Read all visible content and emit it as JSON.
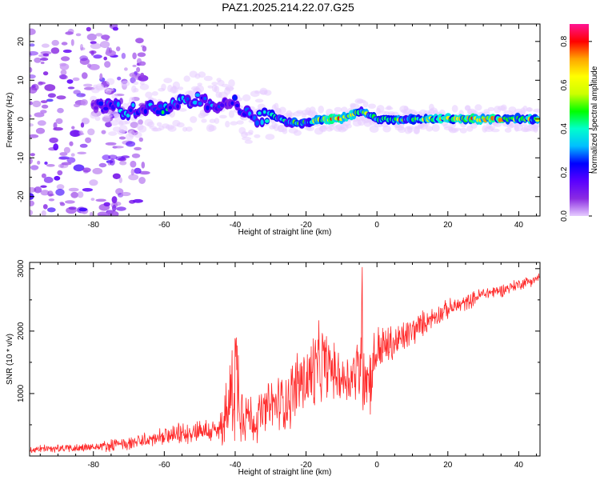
{
  "figure": {
    "title": "PAZ1.2025.214.22.07.G25"
  },
  "chart_data": [
    {
      "type": "heatmap",
      "xlabel": "Height of straight line (km)",
      "ylabel": "Frequency (Hz)",
      "xlim": [
        -98,
        46
      ],
      "ylim": [
        -25,
        24.5
      ],
      "xticks": [
        -80,
        -60,
        -40,
        -20,
        0,
        20,
        40
      ],
      "yticks": [
        -20,
        -10,
        0,
        10,
        20
      ],
      "grid": false,
      "colorbar": {
        "label": "Normalized spectral amplitude",
        "range": [
          0,
          0.88
        ],
        "ticks": [
          0.0,
          0.2,
          0.4,
          0.6,
          0.8
        ],
        "colormap": [
          "#e6ccff",
          "#8a2be2",
          "#5a00ff",
          "#0000ff",
          "#00bfff",
          "#00ffcc",
          "#00ff00",
          "#ccff00",
          "#ffff00",
          "#ffa500",
          "#ff0000",
          "#ff1493"
        ]
      },
      "ridge": {
        "x": [
          -80,
          -75,
          -70,
          -65,
          -60,
          -55,
          -50,
          -45,
          -40,
          -35,
          -30,
          -25,
          -20,
          -15,
          -10,
          -5,
          0,
          10,
          20,
          30,
          40,
          46
        ],
        "frequency": [
          4,
          3,
          2,
          3,
          3,
          4,
          5,
          3,
          4,
          0,
          1,
          -1,
          -1,
          0,
          0,
          2,
          0,
          0,
          0,
          0,
          0,
          0
        ],
        "amplitude": [
          0.18,
          0.35,
          0.4,
          0.3,
          0.45,
          0.35,
          0.3,
          0.3,
          0.25,
          0.3,
          0.45,
          0.45,
          0.5,
          0.7,
          0.75,
          0.55,
          0.5,
          0.55,
          0.7,
          0.75,
          0.65,
          0.6
        ]
      },
      "noise_region_x": [
        -98,
        -73
      ]
    },
    {
      "type": "line",
      "xlabel": "Height of straight line (km)",
      "ylabel": "SNR (10 * v/v)",
      "xlim": [
        -98,
        46
      ],
      "ylim": [
        0,
        3100
      ],
      "xticks": [
        -80,
        -60,
        -40,
        -20,
        0,
        20,
        40
      ],
      "yticks": [
        1000,
        2000,
        3000
      ],
      "grid": false,
      "series": [
        {
          "color": "#ff2a2a",
          "x": [
            -98,
            -90,
            -80,
            -70,
            -60,
            -55,
            -50,
            -45,
            -42,
            -40,
            -38,
            -35,
            -30,
            -25,
            -22,
            -20,
            -18,
            -15,
            -12,
            -10,
            -8,
            -5,
            -4,
            -3,
            -2,
            0,
            5,
            10,
            15,
            20,
            25,
            30,
            35,
            40,
            46
          ],
          "mid": [
            100,
            120,
            140,
            200,
            300,
            350,
            420,
            380,
            700,
            1400,
            800,
            550,
            800,
            900,
            1200,
            1200,
            1300,
            1500,
            1350,
            1250,
            1250,
            1400,
            2000,
            1250,
            1250,
            1700,
            1800,
            2000,
            2200,
            2350,
            2450,
            2600,
            2650,
            2750,
            2850
          ],
          "amp": [
            70,
            80,
            90,
            130,
            160,
            200,
            220,
            240,
            650,
            1400,
            700,
            420,
            500,
            600,
            700,
            650,
            900,
            700,
            500,
            500,
            500,
            700,
            1800,
            700,
            700,
            500,
            350,
            300,
            200,
            180,
            150,
            130,
            120,
            110,
            100
          ]
        }
      ]
    }
  ]
}
